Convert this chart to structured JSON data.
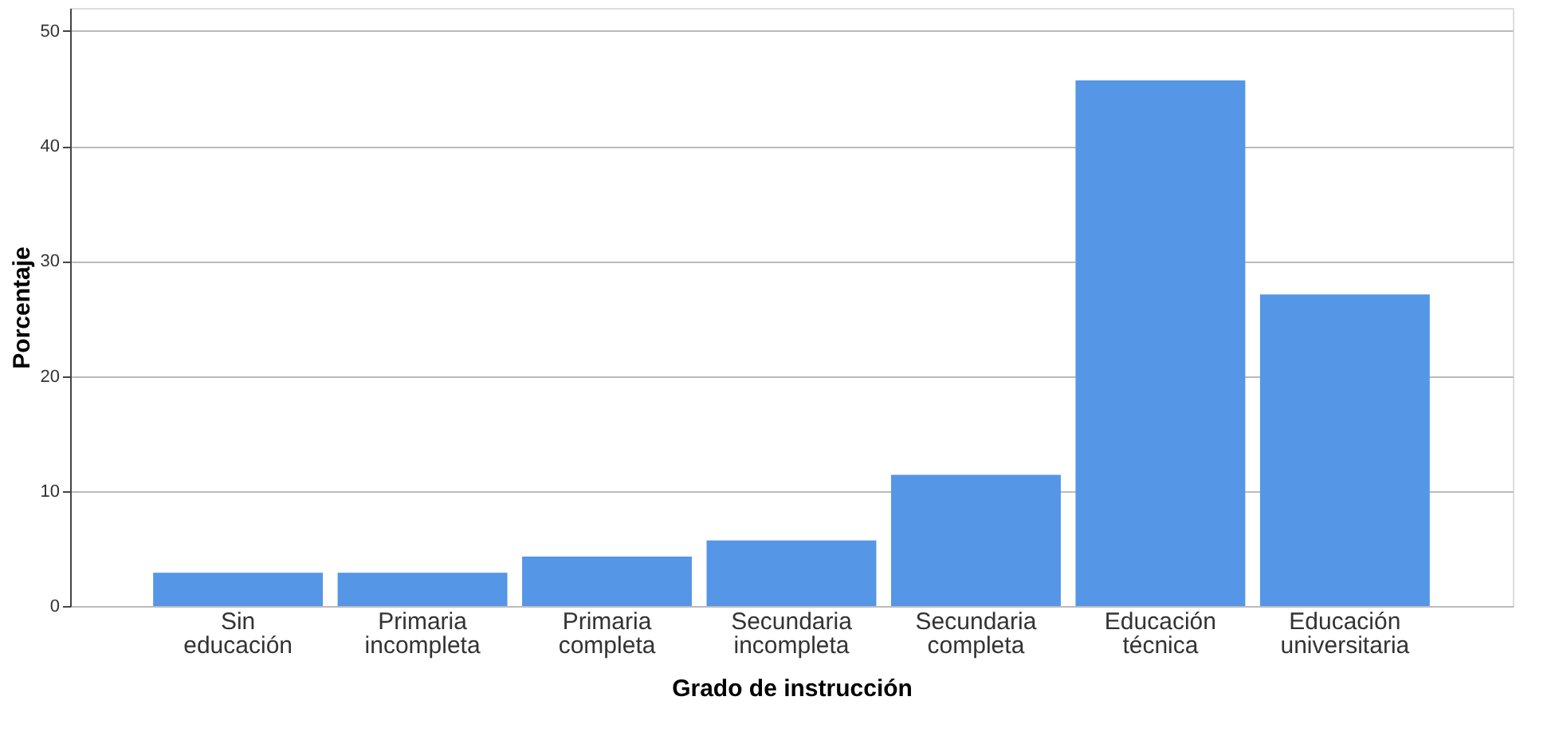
{
  "chart_data": {
    "type": "bar",
    "xlabel": "Grado de instrucción",
    "ylabel": "Porcentaje",
    "categories": [
      "Sin educación",
      "Primaria incompleta",
      "Primaria completa",
      "Secundaria incompleta",
      "Secundaria completa",
      "Educación técnica",
      "Educación universitaria"
    ],
    "values": [
      2.9,
      2.9,
      4.3,
      5.7,
      11.4,
      45.7,
      27.1
    ],
    "color": "#5596e6",
    "ylim": [
      0,
      52
    ],
    "yticks": [
      0,
      10,
      20,
      30,
      40,
      50
    ],
    "grid": "y"
  }
}
